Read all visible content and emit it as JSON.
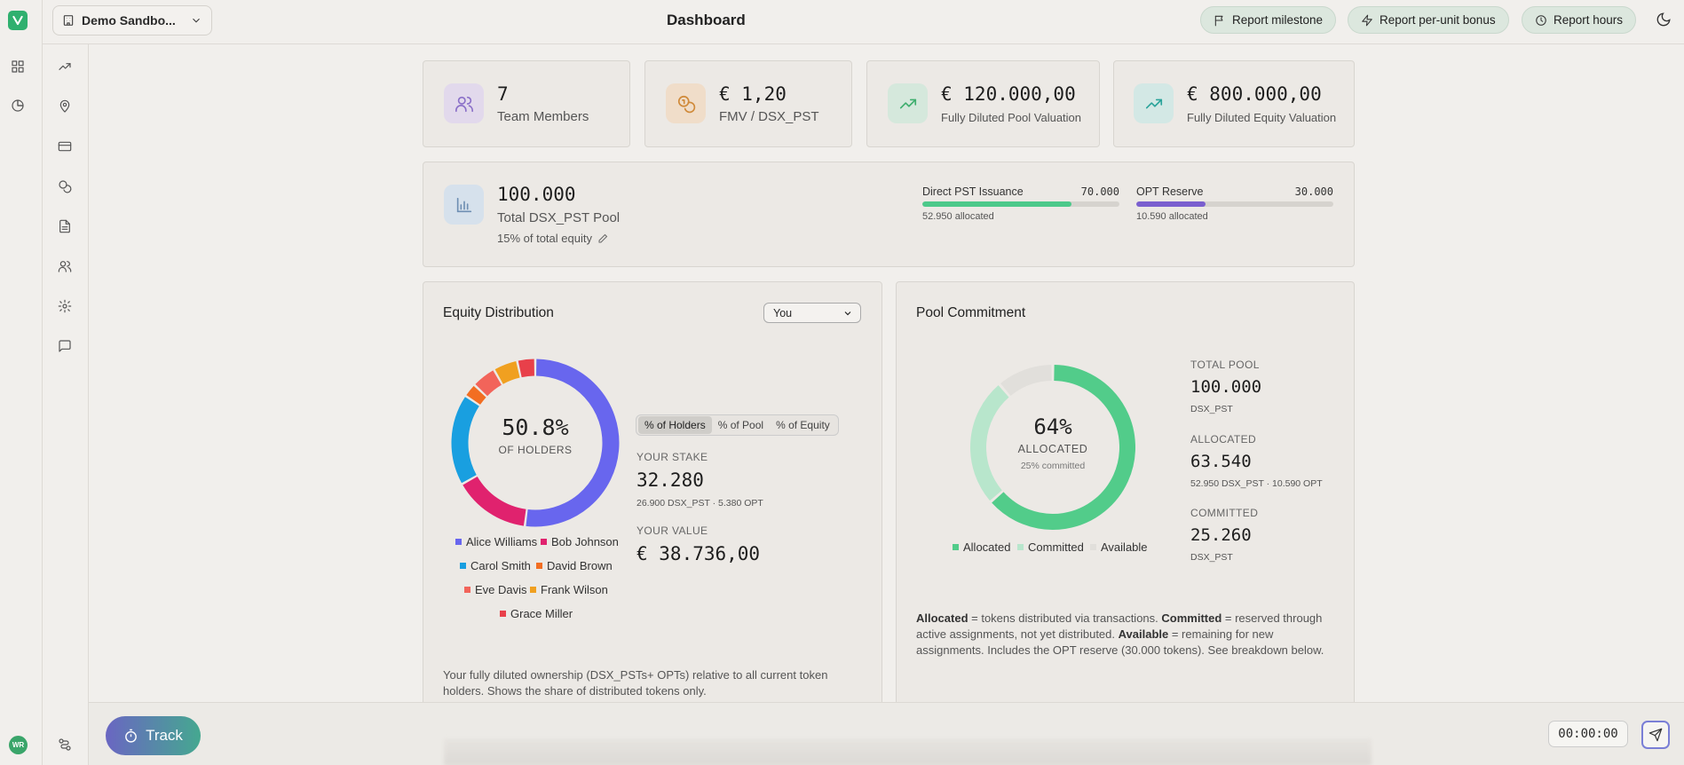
{
  "header": {
    "org_name": "Demo Sandbo...",
    "title": "Dashboard",
    "buttons": [
      {
        "label": "Report milestone",
        "icon": "flag-icon"
      },
      {
        "label": "Report per-unit bonus",
        "icon": "zap-icon"
      },
      {
        "label": "Report hours",
        "icon": "clock-icon"
      }
    ]
  },
  "user": {
    "initials": "WR"
  },
  "stats": [
    {
      "value": "7",
      "label": "Team Members",
      "icon": "users-icon",
      "color": "#8a6fc8",
      "bg": "#e2d9ec"
    },
    {
      "value": "€ 1,20",
      "label": "FMV / DSX_PST",
      "icon": "coins-icon",
      "color": "#d08a3a",
      "bg": "#f0ddc9"
    },
    {
      "value": "€ 120.000,00",
      "label": "Fully Diluted Pool Valuation",
      "icon": "trending-up-icon",
      "color": "#3fae6e",
      "bg": "#d5e8dc"
    },
    {
      "value": "€ 800.000,00",
      "label": "Fully Diluted Equity Valuation",
      "icon": "trending-up-icon",
      "color": "#2aa39a",
      "bg": "#d3e8e5"
    }
  ],
  "pool": {
    "value": "100.000",
    "label": "Total DSX_PST Pool",
    "sub": "15% of total equity",
    "bars": [
      {
        "label": "Direct PST Issuance",
        "total": "70.000",
        "sub": "52.950 allocated",
        "fraction": 0.7564,
        "color": "#4cc98a"
      },
      {
        "label": "OPT Reserve",
        "total": "30.000",
        "sub": "10.590 allocated",
        "fraction": 0.353,
        "color": "#7a5fcf"
      }
    ]
  },
  "equity": {
    "title": "Equity Distribution",
    "select_value": "You",
    "center_value": "50.8%",
    "center_label": "OF HOLDERS",
    "segments": [
      {
        "name": "Alice Williams",
        "value": 50.8,
        "color": "#6866ee"
      },
      {
        "name": "Bob Johnson",
        "value": 14.5,
        "color": "#e0226e"
      },
      {
        "name": "Carol Smith",
        "value": 17.2,
        "color": "#199fe0"
      },
      {
        "name": "David Brown",
        "value": 2.6,
        "color": "#f26e22"
      },
      {
        "name": "Eve Davis",
        "value": 4.6,
        "color": "#f2645a"
      },
      {
        "name": "Frank Wilson",
        "value": 4.6,
        "color": "#f0a020"
      },
      {
        "name": "Grace Miller",
        "value": 3.4,
        "color": "#e8404a"
      }
    ],
    "tabs": [
      "% of Holders",
      "% of Pool",
      "% of Equity"
    ],
    "stake_label": "YOUR STAKE",
    "stake_value": "32.280",
    "stake_sub": "26.900 DSX_PST · 5.380 OPT",
    "value_label": "YOUR VALUE",
    "value_value": "€ 38.736,00",
    "note": "Your fully diluted ownership (DSX_PSTs+ OPTs) relative to all current token holders. Shows the share of distributed tokens only."
  },
  "commitment": {
    "title": "Pool Commitment",
    "center_value": "64%",
    "center_label": "ALLOCATED",
    "center_sub": "25% committed",
    "segments": [
      {
        "name": "Allocated",
        "value": 63.54,
        "color": "#52cc8a"
      },
      {
        "name": "Committed",
        "value": 25.26,
        "color": "#b8e6cc"
      },
      {
        "name": "Available",
        "value": 11.2,
        "color": "#e1dfdb"
      }
    ],
    "total_label": "TOTAL POOL",
    "total_value": "100.000",
    "total_unit": "DSX_PST",
    "allocated_label": "ALLOCATED",
    "allocated_value": "63.540",
    "allocated_sub": "52.950 DSX_PST · 10.590 OPT",
    "committed_label": "COMMITTED",
    "committed_value": "25.260",
    "committed_unit": "DSX_PST",
    "note_parts": {
      "a": "Allocated",
      "a_text": " = tokens distributed via transactions. ",
      "c": "Committed",
      "c_text": " = reserved through active assignments, not yet distributed. ",
      "v": "Available",
      "v_text": " = remaining for new assignments. Includes the OPT reserve (30.000 tokens). See breakdown below."
    }
  },
  "bottom": {
    "track_label": "Track",
    "timer": "00:00:00"
  }
}
